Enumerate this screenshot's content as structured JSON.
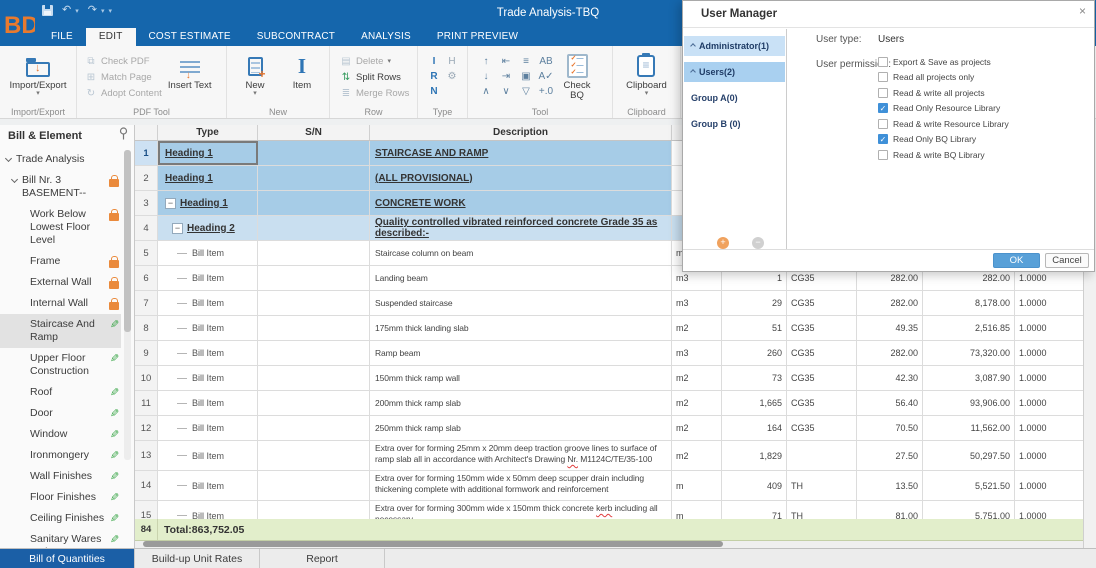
{
  "window": {
    "title": "Trade Analysis-TBQ"
  },
  "ribbon_tabs": [
    {
      "label": "FILE",
      "active": false
    },
    {
      "label": "EDIT",
      "active": true
    },
    {
      "label": "COST ESTIMATE",
      "active": false
    },
    {
      "label": "SUBCONTRACT",
      "active": false
    },
    {
      "label": "ANALYSIS",
      "active": false
    },
    {
      "label": "PRINT PREVIEW",
      "active": false
    }
  ],
  "ribbon": {
    "import_export": "Import/Export",
    "group_import_export": "Import/Export",
    "check_pdf": "Check PDF",
    "match_page": "Match Page",
    "adopt_content": "Adopt Content",
    "insert_text": "Insert Text",
    "group_pdf_tool": "PDF Tool",
    "new_btn": "New",
    "item_btn": "Item",
    "group_new": "New",
    "delete_btn": "Delete",
    "split_rows": "Split Rows",
    "merge_rows": "Merge Rows",
    "group_row": "Row",
    "group_type": "Type",
    "check_bq": "Check BQ",
    "group_tool": "Tool",
    "clipboard_btn": "Clipboard",
    "group_clipboard": "Clipboard"
  },
  "icons": {
    "undo": "↶",
    "redo": "↷",
    "caret": "▾",
    "close": "×",
    "check_pdf": "⧉",
    "match_page": "⊞",
    "adopt_content": "↻",
    "delete_row": "▤",
    "split_rows": "⇅",
    "merge_rows": "≣",
    "item_glyph": "I",
    "collapse": "−",
    "pencil": "✎",
    "plus": "+",
    "minus": "−",
    "type_icons": [
      {
        "g": "I",
        "c": "blue"
      },
      {
        "g": "H",
        "c": "gray"
      },
      {
        "g": "R",
        "c": "blue"
      },
      {
        "g": "⚙",
        "c": "gray"
      },
      {
        "g": "N",
        "c": "blue"
      }
    ],
    "tool_icons": [
      "↑",
      "⇤",
      "≡",
      "AB",
      "↓",
      "⇥",
      "▣",
      "A✓",
      "∧",
      "∨",
      "▽",
      "+.0"
    ]
  },
  "sidebar": {
    "title": "Bill & Element",
    "items": [
      {
        "label": "Trade Analysis",
        "level": 0,
        "expanded": true,
        "icon": ""
      },
      {
        "label": "Bill Nr. 3 BASEMENT--",
        "level": 1,
        "expanded": true,
        "icon": "lock"
      },
      {
        "label": "Work Below Lowest Floor Level",
        "level": 2,
        "icon": "lock"
      },
      {
        "label": "Frame",
        "level": 2,
        "icon": "lock"
      },
      {
        "label": "External Wall",
        "level": 2,
        "icon": "lock"
      },
      {
        "label": "Internal Wall",
        "level": 2,
        "icon": "lock"
      },
      {
        "label": "Staircase And Ramp",
        "level": 2,
        "icon": "pencil",
        "selected": true
      },
      {
        "label": "Upper Floor Construction",
        "level": 2,
        "icon": "pencil"
      },
      {
        "label": "Roof",
        "level": 2,
        "icon": "pencil"
      },
      {
        "label": "Door",
        "level": 2,
        "icon": "pencil"
      },
      {
        "label": "Window",
        "level": 2,
        "icon": "pencil"
      },
      {
        "label": "Ironmongery",
        "level": 2,
        "icon": "pencil"
      },
      {
        "label": "Wall Finishes",
        "level": 2,
        "icon": "pencil"
      },
      {
        "label": "Floor Finishes",
        "level": 2,
        "icon": "pencil"
      },
      {
        "label": "Ceiling Finishes",
        "level": 2,
        "icon": "pencil"
      },
      {
        "label": "Sanitary Wares and",
        "level": 2,
        "icon": "pencil"
      }
    ]
  },
  "table": {
    "headers": {
      "type": "Type",
      "sn": "S/N",
      "description": "Description"
    },
    "rows": [
      {
        "num": "1",
        "type": "Heading 1",
        "style": "h1",
        "desc": "STAIRCASE AND RAMP",
        "selected": true
      },
      {
        "num": "2",
        "type": "Heading 1",
        "style": "h1",
        "desc": "(ALL PROVISIONAL)"
      },
      {
        "num": "3",
        "type": "Heading 1",
        "style": "h1",
        "desc": "CONCRETE WORK",
        "collapse": true
      },
      {
        "num": "4",
        "type": "Heading 2",
        "style": "h2",
        "desc": "Quality controlled vibrated reinforced concrete Grade 35 as described:-",
        "collapse": true,
        "indent": 1
      },
      {
        "num": "5",
        "type": "Bill Item",
        "style": "item",
        "desc": "Staircase column on beam",
        "unit": "m"
      },
      {
        "num": "6",
        "type": "Bill Item",
        "style": "item",
        "desc": "Landing beam",
        "unit": "m3",
        "qty": "1",
        "code": "CG35",
        "rate": "282.00",
        "amount": "282.00",
        "factor": "1.0000"
      },
      {
        "num": "7",
        "type": "Bill Item",
        "style": "item",
        "desc": "Suspended staircase",
        "unit": "m3",
        "qty": "29",
        "code": "CG35",
        "rate": "282.00",
        "amount": "8,178.00",
        "factor": "1.0000"
      },
      {
        "num": "8",
        "type": "Bill Item",
        "style": "item",
        "desc": "175mm thick landing slab",
        "unit": "m2",
        "qty": "51",
        "code": "CG35",
        "rate": "49.35",
        "amount": "2,516.85",
        "factor": "1.0000"
      },
      {
        "num": "9",
        "type": "Bill Item",
        "style": "item",
        "desc": "Ramp beam",
        "unit": "m3",
        "qty": "260",
        "code": "CG35",
        "rate": "282.00",
        "amount": "73,320.00",
        "factor": "1.0000"
      },
      {
        "num": "10",
        "type": "Bill Item",
        "style": "item",
        "desc": "150mm thick ramp wall",
        "unit": "m2",
        "qty": "73",
        "code": "CG35",
        "rate": "42.30",
        "amount": "3,087.90",
        "factor": "1.0000"
      },
      {
        "num": "11",
        "type": "Bill Item",
        "style": "item",
        "desc": "200mm thick ramp slab",
        "unit": "m2",
        "qty": "1,665",
        "code": "CG35",
        "rate": "56.40",
        "amount": "93,906.00",
        "factor": "1.0000"
      },
      {
        "num": "12",
        "type": "Bill Item",
        "style": "item",
        "desc": "250mm thick ramp slab",
        "unit": "m2",
        "qty": "164",
        "code": "CG35",
        "rate": "70.50",
        "amount": "11,562.00",
        "factor": "1.0000"
      },
      {
        "num": "13",
        "type": "Bill Item",
        "style": "item",
        "desc": "Extra over for forming 25mm x 20mm deep traction groove lines to surface of ramp slab all in accordance with Architect's Drawing Nr. M1124C/TE/35-100",
        "unit": "m2",
        "qty": "1,829",
        "code": "",
        "rate": "27.50",
        "amount": "50,297.50",
        "factor": "1.0000",
        "tall": true,
        "misspell": [
          "Nr."
        ]
      },
      {
        "num": "14",
        "type": "Bill Item",
        "style": "item",
        "desc": "Extra over for forming 150mm wide x 50mm deep scupper drain including thickening complete with additional formwork and reinforcement",
        "unit": "m",
        "qty": "409",
        "code": "TH",
        "rate": "13.50",
        "amount": "5,521.50",
        "factor": "1.0000",
        "tall": true
      },
      {
        "num": "15",
        "type": "Bill Item",
        "style": "item",
        "desc": "Extra over for forming 300mm wide x 150mm thick concrete kerb including all necessary",
        "unit": "m",
        "qty": "71",
        "code": "TH",
        "rate": "81.00",
        "amount": "5,751.00",
        "factor": "1.0000",
        "tall": true,
        "misspell": [
          "kerb"
        ]
      }
    ],
    "total": {
      "num": "84",
      "label": "Total:863,752.05"
    }
  },
  "bottom_tabs": [
    {
      "label": "Bill of Quantities",
      "active": true
    },
    {
      "label": "Build-up Unit Rates",
      "active": false
    },
    {
      "label": "Report",
      "active": false
    }
  ],
  "dialog": {
    "title": "User Manager",
    "tree": [
      {
        "label": "Administrator(1)",
        "chevron": true,
        "highlight": "#c9e1f6"
      },
      {
        "label": "Users(2)",
        "chevron": true,
        "highlight": "#a9d0f0"
      },
      {
        "label": "Group A(0)"
      },
      {
        "label": "Group B (0)"
      }
    ],
    "user_type_label": "User type:",
    "user_type_value": "Users",
    "permission_label": "User permission:",
    "permissions": [
      {
        "label": "Export & Save as projects",
        "checked": false
      },
      {
        "label": "Read all projects only",
        "checked": false
      },
      {
        "label": "Read & write all projects",
        "checked": false
      },
      {
        "label": "Read Only Resource Library",
        "checked": true
      },
      {
        "label": "Read & write Resource Library",
        "checked": false
      },
      {
        "label": "Read Only BQ Library",
        "checked": true
      },
      {
        "label": "Read & write BQ Library",
        "checked": false
      }
    ],
    "ok": "OK",
    "cancel": "Cancel"
  },
  "colors": {
    "titlebar": "#1566ac",
    "accent_orange": "#e8762d",
    "accent_blue": "#2e75b5",
    "heading1_row": "#a6cce7",
    "heading2_row": "#c9dff0",
    "total_row": "#e2eecb",
    "active_bottom_tab": "#1b5fa6",
    "checkbox_checked": "#3f90d8"
  }
}
